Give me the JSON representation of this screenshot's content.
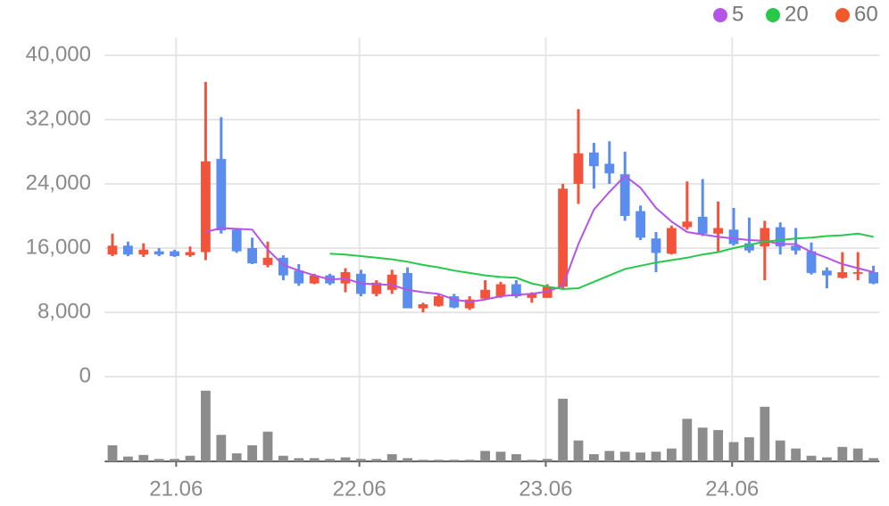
{
  "chart_data": {
    "type": "candlestick",
    "x": [
      0,
      1,
      2,
      3,
      4,
      5,
      6,
      7,
      8,
      9,
      10,
      11,
      12,
      13,
      14,
      15,
      16,
      17,
      18,
      19,
      20,
      21,
      22,
      23,
      24,
      25,
      26,
      27,
      28,
      29,
      30,
      31,
      32,
      33,
      34,
      35,
      36,
      37,
      38,
      39,
      40,
      41,
      42,
      43,
      44,
      45,
      46,
      47,
      48,
      49
    ],
    "open": [
      15200,
      16300,
      15200,
      15600,
      15600,
      15100,
      15500,
      27100,
      18300,
      16000,
      13900,
      14800,
      13200,
      11600,
      12600,
      11600,
      12800,
      10300,
      10800,
      12900,
      8500,
      8800,
      10000,
      8500,
      9700,
      10000,
      11500,
      9800,
      9800,
      11200,
      24000,
      27900,
      26500,
      25200,
      20600,
      17200,
      15300,
      18600,
      19900,
      17800,
      18300,
      16600,
      16200,
      18600,
      16300,
      15600,
      13200,
      12300,
      12800,
      13000
    ],
    "close": [
      16300,
      15200,
      15800,
      15200,
      15000,
      15500,
      26800,
      18200,
      15600,
      14100,
      14800,
      12600,
      11600,
      12600,
      11600,
      13000,
      10300,
      11700,
      12700,
      8500,
      9000,
      10000,
      8600,
      9600,
      10800,
      11500,
      10000,
      10300,
      11200,
      23400,
      27800,
      26200,
      25300,
      20000,
      17300,
      15400,
      18500,
      19300,
      17800,
      18500,
      16500,
      15700,
      18500,
      16200,
      15700,
      12900,
      12600,
      13000,
      13000,
      11600
    ],
    "high": [
      17800,
      16800,
      16600,
      16000,
      15800,
      16200,
      36700,
      32300,
      18500,
      17300,
      16800,
      15100,
      14000,
      12800,
      12800,
      13500,
      13300,
      12000,
      13300,
      13600,
      9200,
      10300,
      10300,
      10000,
      12000,
      11800,
      12000,
      10500,
      11500,
      24000,
      33300,
      29100,
      29300,
      28000,
      21300,
      18000,
      18800,
      24300,
      24600,
      21800,
      21000,
      19800,
      19400,
      19200,
      18500,
      16700,
      13600,
      15500,
      15500,
      13800
    ],
    "low": [
      15000,
      15000,
      14900,
      15000,
      14900,
      14900,
      14500,
      17800,
      15400,
      14000,
      13600,
      12000,
      11300,
      11500,
      11400,
      10500,
      10000,
      10000,
      10300,
      8500,
      8000,
      8700,
      8500,
      8300,
      9500,
      9800,
      9800,
      9200,
      9800,
      11000,
      21500,
      23400,
      24000,
      19400,
      17000,
      13000,
      15200,
      18300,
      17500,
      15500,
      16300,
      15400,
      12000,
      15200,
      15200,
      12700,
      11000,
      12200,
      12000,
      11500
    ],
    "up_color": "#f4533b",
    "down_color": "#5b8def",
    "series": [
      {
        "name": "5",
        "color": "#b455e8",
        "values": [
          null,
          null,
          null,
          null,
          null,
          null,
          18000,
          18500,
          18400,
          18300,
          15800,
          13900,
          13200,
          12600,
          12100,
          12200,
          11600,
          11500,
          11400,
          10800,
          10500,
          10300,
          9600,
          9300,
          9600,
          10000,
          10200,
          10300,
          10600,
          11300,
          16500,
          20800,
          23000,
          25000,
          23500,
          21000,
          19300,
          18000,
          17700,
          17400,
          17200,
          17000,
          16900,
          16500,
          16500,
          15500,
          14800,
          14000,
          13500,
          13000
        ]
      },
      {
        "name": "20",
        "color": "#28c94a",
        "values": [
          null,
          null,
          null,
          null,
          null,
          null,
          null,
          null,
          null,
          null,
          null,
          null,
          null,
          null,
          15300,
          15200,
          15000,
          14800,
          14600,
          14300,
          13900,
          13600,
          13200,
          12900,
          12600,
          12400,
          12300,
          11600,
          11200,
          10900,
          11000,
          11800,
          12600,
          13400,
          13800,
          14200,
          14500,
          14800,
          15200,
          15500,
          16000,
          16400,
          16800,
          17000,
          17200,
          17300,
          17500,
          17600,
          17800,
          17400
        ]
      },
      {
        "name": "60",
        "color": "#f05a28",
        "values": [
          null,
          null,
          null,
          null,
          null,
          null,
          null,
          null,
          null,
          null,
          null,
          null,
          null,
          null,
          null,
          null,
          null,
          null,
          null,
          null,
          null,
          null,
          null,
          null,
          null,
          null,
          null,
          null,
          null,
          null,
          null,
          null,
          null,
          null,
          null,
          null,
          null,
          null,
          null,
          null,
          null,
          null,
          null,
          null,
          null,
          null,
          null,
          null,
          null,
          null
        ]
      }
    ],
    "volume": {
      "color": "#8c8c8c",
      "ylim": [
        0,
        100
      ],
      "values": [
        20,
        6,
        8,
        3,
        3,
        7,
        88,
        33,
        10,
        20,
        37,
        7,
        4,
        4,
        3,
        5,
        3,
        3,
        9,
        4,
        2,
        2,
        2,
        2,
        13,
        12,
        9,
        2,
        3,
        78,
        26,
        9,
        13,
        12,
        11,
        12,
        16,
        53,
        42,
        39,
        24,
        30,
        68,
        26,
        16,
        7,
        5,
        18,
        16,
        4
      ]
    },
    "xlim": [
      -0.5,
      49.5
    ],
    "xticks": [
      {
        "value": 4.1,
        "label": "21.06"
      },
      {
        "value": 15.9,
        "label": "22.06"
      },
      {
        "value": 27.9,
        "label": "23.06"
      },
      {
        "value": 39.9,
        "label": "24.06"
      }
    ],
    "ylim": [
      0,
      40000
    ],
    "yticks": [
      0,
      {
        "value": 8000,
        "label": "8,000"
      },
      {
        "value": 16000,
        "label": "16,000"
      },
      {
        "value": 24000,
        "label": "24,000"
      },
      {
        "value": 32000,
        "label": "32,000"
      },
      {
        "value": 40000,
        "label": "40,000"
      }
    ],
    "grid": true
  }
}
